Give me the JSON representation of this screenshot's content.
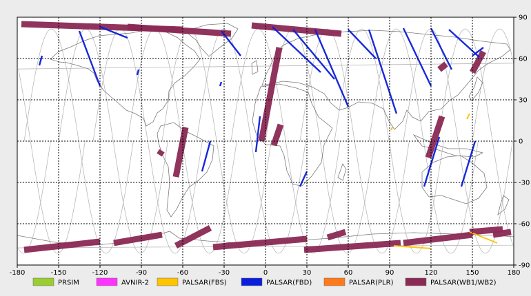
{
  "chart_data": {
    "type": "map",
    "projection": "equirectangular",
    "xlim": [
      -180,
      180
    ],
    "ylim": [
      -90,
      90
    ],
    "grid": true,
    "x_ticks": [
      -180,
      -150,
      -120,
      -90,
      -60,
      -30,
      0,
      30,
      60,
      90,
      120,
      150,
      180
    ],
    "x_tick_labels": [
      "-180",
      "-150",
      "-120",
      "-90",
      "-60",
      "-30",
      "0",
      "30",
      "60",
      "90",
      "120",
      "150",
      "180"
    ],
    "y_ticks": [
      90,
      60,
      30,
      0,
      -30,
      -60,
      -90
    ],
    "y_tick_labels": [
      "90",
      "60",
      "30",
      "0",
      "-30",
      "-60",
      "-90"
    ],
    "legend_placement": "bottom",
    "legend": [
      {
        "label": "PRSIM",
        "color": "#9acd32"
      },
      {
        "label": "AVNIR-2",
        "color": "#ff33ff"
      },
      {
        "label": "PALSAR(FBS)",
        "color": "#ffc400"
      },
      {
        "label": "PALSAR(FBD)",
        "color": "#0a1edc"
      },
      {
        "label": "PALSAR(PLR)",
        "color": "#ff7a1a"
      },
      {
        "label": "PALSAR(WB1/WB2)",
        "color": "#8b2a55"
      }
    ],
    "orbit_tracks": {
      "color": "#b8b8b8",
      "inclination_deg": 98.2,
      "descending_node_longitudes": [
        -175,
        -150,
        -125,
        -100,
        -75,
        -50,
        -25,
        0,
        25,
        50,
        75,
        100,
        125,
        150
      ]
    },
    "swaths": {
      "PALSAR(WB1/WB2)": [
        {
          "lon": [
            -177,
            -60
          ],
          "lat": [
            85,
            81
          ]
        },
        {
          "lon": [
            -100,
            -25
          ],
          "lat": [
            83,
            78
          ]
        },
        {
          "lon": [
            -10,
            55
          ],
          "lat": [
            84,
            78
          ]
        },
        {
          "lon": [
            -3,
            10
          ],
          "lat": [
            0,
            68
          ]
        },
        {
          "lon": [
            -65,
            -58
          ],
          "lat": [
            -26,
            10
          ]
        },
        {
          "lon": [
            -77,
            -75
          ],
          "lat": [
            -10,
            -7
          ]
        },
        {
          "lon": [
            6,
            11
          ],
          "lat": [
            -3,
            12
          ]
        },
        {
          "lon": [
            118,
            128
          ],
          "lat": [
            -12,
            18
          ]
        },
        {
          "lon": [
            150,
            158
          ],
          "lat": [
            50,
            65
          ]
        },
        {
          "lon": [
            126,
            131
          ],
          "lat": [
            52,
            56
          ]
        },
        {
          "lon": [
            -175,
            -120
          ],
          "lat": [
            -79,
            -73
          ]
        },
        {
          "lon": [
            -110,
            -75
          ],
          "lat": [
            -74,
            -68
          ]
        },
        {
          "lon": [
            -65,
            -40
          ],
          "lat": [
            -76,
            -63
          ]
        },
        {
          "lon": [
            -38,
            30
          ],
          "lat": [
            -77,
            -71
          ]
        },
        {
          "lon": [
            45,
            58
          ],
          "lat": [
            -70,
            -66
          ]
        },
        {
          "lon": [
            28,
            98
          ],
          "lat": [
            -79,
            -74
          ]
        },
        {
          "lon": [
            100,
            150
          ],
          "lat": [
            -74,
            -68
          ]
        },
        {
          "lon": [
            148,
            172
          ],
          "lat": [
            -66,
            -64
          ]
        },
        {
          "lon": [
            165,
            178
          ],
          "lat": [
            -68,
            -66
          ]
        }
      ],
      "PALSAR(FBD)": [
        {
          "lon": [
            -135,
            -120
          ],
          "lat": [
            80,
            40
          ]
        },
        {
          "lon": [
            -120,
            -100
          ],
          "lat": [
            83,
            75
          ]
        },
        {
          "lon": [
            -32,
            -18
          ],
          "lat": [
            80,
            62
          ]
        },
        {
          "lon": [
            5,
            40
          ],
          "lat": [
            83,
            50
          ]
        },
        {
          "lon": [
            20,
            50
          ],
          "lat": [
            81,
            45
          ]
        },
        {
          "lon": [
            36,
            60
          ],
          "lat": [
            81,
            25
          ]
        },
        {
          "lon": [
            60,
            80
          ],
          "lat": [
            81,
            60
          ]
        },
        {
          "lon": [
            75,
            95
          ],
          "lat": [
            81,
            20
          ]
        },
        {
          "lon": [
            100,
            120
          ],
          "lat": [
            82,
            40
          ]
        },
        {
          "lon": [
            120,
            135
          ],
          "lat": [
            82,
            52
          ]
        },
        {
          "lon": [
            133,
            155
          ],
          "lat": [
            81,
            61
          ]
        },
        {
          "lon": [
            150,
            158
          ],
          "lat": [
            62,
            68
          ]
        },
        {
          "lon": [
            -46,
            -40
          ],
          "lat": [
            -22,
            0
          ]
        },
        {
          "lon": [
            -7,
            -4
          ],
          "lat": [
            -8,
            18
          ]
        },
        {
          "lon": [
            25,
            30
          ],
          "lat": [
            -33,
            -22
          ]
        },
        {
          "lon": [
            115,
            126
          ],
          "lat": [
            -33,
            3
          ]
        },
        {
          "lon": [
            142,
            152
          ],
          "lat": [
            -33,
            0
          ]
        },
        {
          "lon": [
            -164,
            -162
          ],
          "lat": [
            55,
            62
          ]
        },
        {
          "lon": [
            -93,
            -92
          ],
          "lat": [
            48,
            52
          ]
        },
        {
          "lon": [
            -33,
            -32
          ],
          "lat": [
            40,
            43
          ]
        }
      ],
      "PALSAR(FBS)": [
        {
          "lon": [
            91,
            92
          ],
          "lat": [
            8,
            10
          ]
        },
        {
          "lon": [
            146,
            148
          ],
          "lat": [
            16,
            20
          ]
        },
        {
          "lon": [
            93,
            120
          ],
          "lat": [
            -76,
            -78
          ]
        },
        {
          "lon": [
            148,
            168
          ],
          "lat": [
            -66,
            -74
          ]
        }
      ]
    }
  },
  "colors": {
    "background": "#ececec",
    "plot_background": "#ffffff",
    "coastline": "#7a7a7a",
    "grid": "#000000"
  }
}
